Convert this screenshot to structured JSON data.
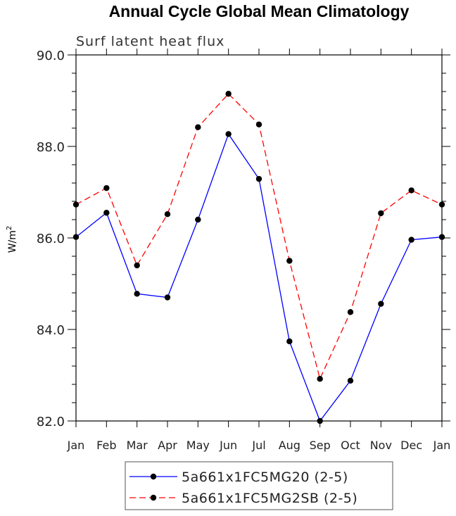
{
  "chart_data": {
    "type": "line",
    "title": "Annual Cycle Global Mean Climatology",
    "subtitle": "Surf latent heat flux",
    "xlabel": "",
    "ylabel": "W/m",
    "ylabel_superscript": "2",
    "categories": [
      "Jan",
      "Feb",
      "Mar",
      "Apr",
      "May",
      "Jun",
      "Jul",
      "Aug",
      "Sep",
      "Oct",
      "Nov",
      "Dec",
      "Jan"
    ],
    "ylim": [
      82.0,
      90.0
    ],
    "yticks": [
      82.0,
      84.0,
      86.0,
      88.0,
      90.0
    ],
    "ytick_labels": [
      "82.0",
      "84.0",
      "86.0",
      "88.0",
      "90.0"
    ],
    "grid": false,
    "legend_position": "bottom",
    "series": [
      {
        "name": "5a661x1FC5MG20 (2-5)",
        "color": "#0000ff",
        "dash": "solid",
        "values": [
          86.02,
          86.55,
          84.78,
          84.7,
          86.4,
          88.27,
          87.29,
          83.74,
          82.0,
          82.88,
          84.56,
          85.96,
          86.02
        ]
      },
      {
        "name": "5a661x1FC5MG2SB (2-5)",
        "color": "#ff0000",
        "dash": "dashed",
        "values": [
          86.73,
          87.09,
          85.4,
          86.52,
          88.42,
          89.15,
          88.48,
          85.5,
          82.92,
          84.38,
          86.54,
          87.04,
          86.73
        ]
      }
    ]
  }
}
